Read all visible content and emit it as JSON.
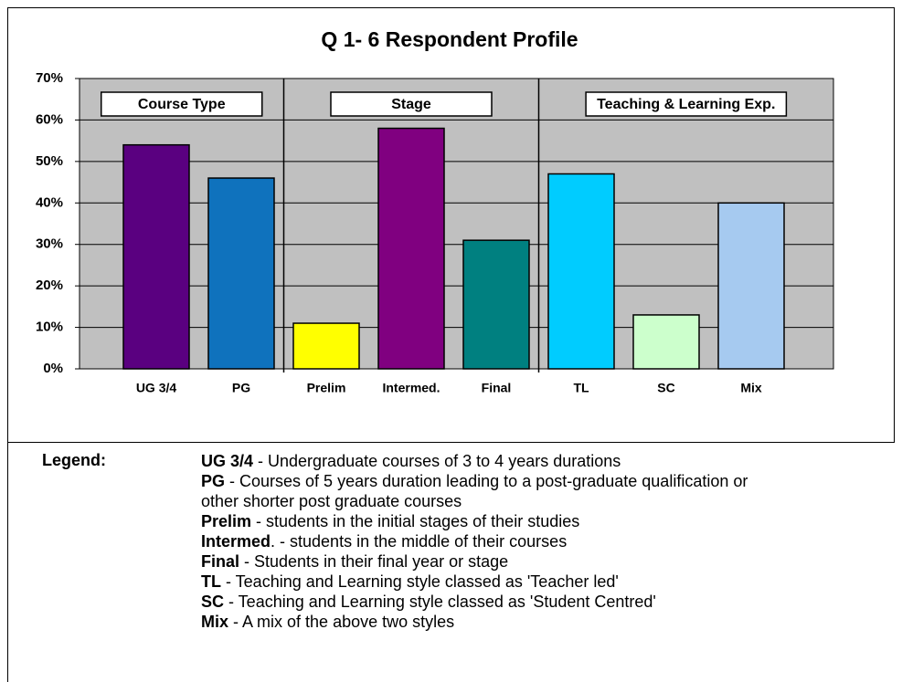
{
  "chart_data": {
    "type": "bar",
    "title": "Q 1- 6 Respondent Profile",
    "ylim": [
      0,
      70
    ],
    "yticks": [
      {
        "value": 0,
        "label": "0%"
      },
      {
        "value": 10,
        "label": "10%"
      },
      {
        "value": 20,
        "label": "20%"
      },
      {
        "value": 30,
        "label": "30%"
      },
      {
        "value": 40,
        "label": "40%"
      },
      {
        "value": 50,
        "label": "50%"
      },
      {
        "value": 60,
        "label": "60%"
      },
      {
        "value": 70,
        "label": "70%"
      }
    ],
    "grid": true,
    "groups": [
      {
        "label": "Course Type",
        "categories": [
          "UG 3/4",
          "PG"
        ],
        "values": [
          54,
          46
        ],
        "colors": [
          "#5a0080",
          "#0f72bd"
        ]
      },
      {
        "label": "Stage",
        "categories": [
          "Prelim",
          "Intermed.",
          "Final"
        ],
        "values": [
          11,
          58,
          31
        ],
        "colors": [
          "#ffff00",
          "#800080",
          "#008080"
        ]
      },
      {
        "label": "Teaching & Learning Exp.",
        "categories": [
          "TL",
          "SC",
          "Mix"
        ],
        "values": [
          47,
          13,
          40
        ],
        "colors": [
          "#00ccff",
          "#ccffcc",
          "#a6caf0"
        ]
      }
    ]
  },
  "legend": {
    "heading": "Legend:",
    "items": [
      {
        "term": "UG 3/4",
        "text": " - Undergraduate courses of 3 to 4 years durations"
      },
      {
        "term": "PG",
        "text": " - Courses of 5 years duration leading to a post-graduate qualification or other shorter post graduate courses"
      },
      {
        "term": "Prelim",
        "text": " - students in the initial stages of their studies"
      },
      {
        "term": "Intermed",
        "text": ". - students in the middle of their courses"
      },
      {
        "term": "Final",
        "text": " - Students in their final year or stage"
      },
      {
        "term": "TL",
        "text": " - Teaching and Learning style classed as 'Teacher led'"
      },
      {
        "term": "SC",
        "text": " - Teaching and Learning style classed as 'Student Centred'"
      },
      {
        "term": "Mix",
        "text": " - A mix of the above two styles"
      }
    ]
  }
}
